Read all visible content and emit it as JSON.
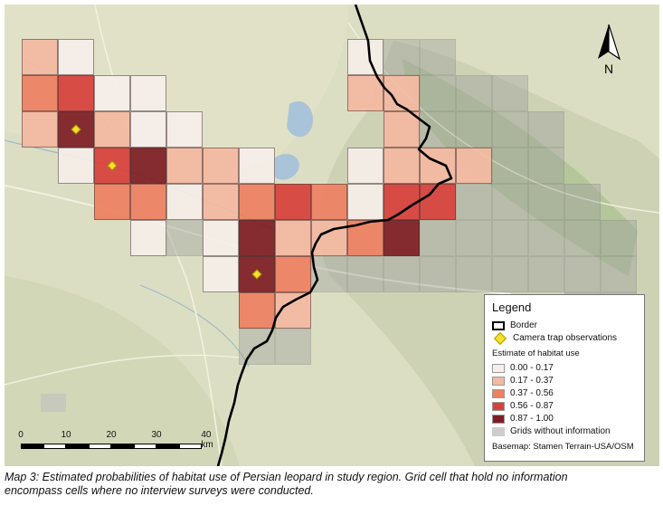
{
  "map": {
    "legend": {
      "title": "Legend",
      "border_label": "Border",
      "camera_label": "Camera trap observations",
      "estimate_title": "Estimate of habitat use",
      "classes": [
        {
          "label": "0.00 - 0.17",
          "color": "#f7efea"
        },
        {
          "label": "0.17 - 0.37",
          "color": "#f4b9a2"
        },
        {
          "label": "0.37 - 0.56",
          "color": "#ee8062"
        },
        {
          "label": "0.56 - 0.87",
          "color": "#d8403c"
        },
        {
          "label": "0.87 - 1.00",
          "color": "#7d1d24"
        }
      ],
      "no_info_label": "Grids without information",
      "no_info_color": "#9e9e9e",
      "basemap_note": "Basemap: Stamen Terrain-USA/OSM"
    },
    "scalebar": {
      "labels": [
        "0",
        "10",
        "20",
        "30",
        "40 km"
      ]
    },
    "north_label": "N",
    "grid_cells": [
      {
        "row": 0,
        "col": 0,
        "value": 0.27
      },
      {
        "row": 0,
        "col": 1,
        "value": 0.05
      },
      {
        "row": 1,
        "col": 0,
        "value": 0.5
      },
      {
        "row": 1,
        "col": 1,
        "value": 0.75
      },
      {
        "row": 1,
        "col": 2,
        "value": 0.05
      },
      {
        "row": 1,
        "col": 3,
        "value": 0.05
      },
      {
        "row": 2,
        "col": 0,
        "value": 0.27
      },
      {
        "row": 2,
        "col": 1,
        "value": 0.95
      },
      {
        "row": 2,
        "col": 2,
        "value": 0.27
      },
      {
        "row": 2,
        "col": 3,
        "value": 0.05
      },
      {
        "row": 2,
        "col": 4,
        "value": 0.05
      },
      {
        "row": 3,
        "col": 1,
        "value": 0.05
      },
      {
        "row": 3,
        "col": 2,
        "value": 0.7
      },
      {
        "row": 3,
        "col": 3,
        "value": 0.95
      },
      {
        "row": 3,
        "col": 4,
        "value": 0.27
      },
      {
        "row": 3,
        "col": 5,
        "value": 0.27
      },
      {
        "row": 3,
        "col": 6,
        "value": 0.05
      },
      {
        "row": 4,
        "col": 2,
        "value": 0.5
      },
      {
        "row": 4,
        "col": 3,
        "value": 0.5
      },
      {
        "row": 4,
        "col": 4,
        "value": 0.05
      },
      {
        "row": 4,
        "col": 5,
        "value": 0.27
      },
      {
        "row": 4,
        "col": 6,
        "value": 0.5
      },
      {
        "row": 4,
        "col": 7,
        "value": 0.7
      },
      {
        "row": 4,
        "col": 8,
        "value": 0.5
      },
      {
        "row": 5,
        "col": 3,
        "value": 0.05
      },
      {
        "row": 5,
        "col": 4,
        "value": null
      },
      {
        "row": 5,
        "col": 5,
        "value": 0.05
      },
      {
        "row": 5,
        "col": 6,
        "value": 0.95
      },
      {
        "row": 5,
        "col": 7,
        "value": 0.27
      },
      {
        "row": 5,
        "col": 8,
        "value": 0.27
      },
      {
        "row": 6,
        "col": 5,
        "value": 0.05
      },
      {
        "row": 6,
        "col": 6,
        "value": 0.95
      },
      {
        "row": 6,
        "col": 7,
        "value": 0.5
      },
      {
        "row": 6,
        "col": 8,
        "value": null
      },
      {
        "row": 7,
        "col": 6,
        "value": 0.5
      },
      {
        "row": 7,
        "col": 7,
        "value": 0.27
      },
      {
        "row": 8,
        "col": 6,
        "value": null
      },
      {
        "row": 8,
        "col": 7,
        "value": null
      },
      {
        "row": 0,
        "col": 9,
        "value": 0.05
      },
      {
        "row": 0,
        "col": 10,
        "value": null
      },
      {
        "row": 0,
        "col": 11,
        "value": null
      },
      {
        "row": 1,
        "col": 9,
        "value": 0.27
      },
      {
        "row": 1,
        "col": 10,
        "value": 0.27
      },
      {
        "row": 1,
        "col": 11,
        "value": null
      },
      {
        "row": 1,
        "col": 12,
        "value": null
      },
      {
        "row": 1,
        "col": 13,
        "value": null
      },
      {
        "row": 2,
        "col": 10,
        "value": 0.27
      },
      {
        "row": 2,
        "col": 11,
        "value": null
      },
      {
        "row": 2,
        "col": 12,
        "value": null
      },
      {
        "row": 2,
        "col": 13,
        "value": null
      },
      {
        "row": 2,
        "col": 14,
        "value": null
      },
      {
        "row": 3,
        "col": 9,
        "value": 0.05
      },
      {
        "row": 3,
        "col": 10,
        "value": 0.27
      },
      {
        "row": 3,
        "col": 11,
        "value": 0.27
      },
      {
        "row": 3,
        "col": 12,
        "value": 0.27
      },
      {
        "row": 3,
        "col": 13,
        "value": null
      },
      {
        "row": 3,
        "col": 14,
        "value": null
      },
      {
        "row": 4,
        "col": 9,
        "value": 0.05
      },
      {
        "row": 4,
        "col": 10,
        "value": 0.7
      },
      {
        "row": 4,
        "col": 11,
        "value": 0.7
      },
      {
        "row": 4,
        "col": 12,
        "value": null
      },
      {
        "row": 4,
        "col": 13,
        "value": null
      },
      {
        "row": 4,
        "col": 14,
        "value": null
      },
      {
        "row": 4,
        "col": 15,
        "value": null
      },
      {
        "row": 5,
        "col": 9,
        "value": 0.5
      },
      {
        "row": 5,
        "col": 10,
        "value": 0.95
      },
      {
        "row": 5,
        "col": 11,
        "value": null
      },
      {
        "row": 5,
        "col": 12,
        "value": null
      },
      {
        "row": 5,
        "col": 13,
        "value": null
      },
      {
        "row": 5,
        "col": 14,
        "value": null
      },
      {
        "row": 5,
        "col": 15,
        "value": null
      },
      {
        "row": 5,
        "col": 16,
        "value": null
      },
      {
        "row": 6,
        "col": 9,
        "value": null
      },
      {
        "row": 6,
        "col": 10,
        "value": null
      },
      {
        "row": 6,
        "col": 11,
        "value": null
      },
      {
        "row": 6,
        "col": 12,
        "value": null
      },
      {
        "row": 6,
        "col": 13,
        "value": null
      },
      {
        "row": 6,
        "col": 14,
        "value": null
      },
      {
        "row": 6,
        "col": 15,
        "value": null
      },
      {
        "row": 6,
        "col": 16,
        "value": null
      },
      {
        "row": 7,
        "col": 15,
        "value": null
      },
      {
        "row": 7,
        "col": 16,
        "value": null
      }
    ],
    "camera_traps": [
      {
        "row": 2,
        "col": 1
      },
      {
        "row": 3,
        "col": 2
      },
      {
        "row": 6,
        "col": 6
      }
    ]
  },
  "caption": {
    "line1": "Map 3: Estimated probabilities of habitat use of Persian leopard in study region. Grid cell that hold no information",
    "line2": "encompass cells where no interview surveys were conducted."
  }
}
